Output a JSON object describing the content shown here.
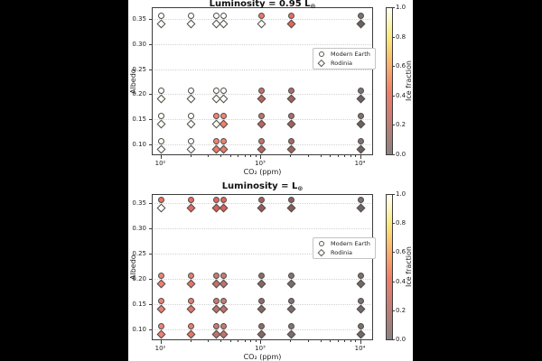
{
  "figure": {
    "background": "#000000",
    "panel_background": "#ffffff",
    "marker_edge_color": "#4d4d4d",
    "grid_color": "#d2d2d2"
  },
  "colorbar": {
    "label": "Ice fraction",
    "ticks": [
      "1.0",
      "0.8",
      "0.6",
      "0.4",
      "0.2",
      "0.0"
    ],
    "tick_values": [
      1.0,
      0.8,
      0.6,
      0.4,
      0.2,
      0.0
    ],
    "gradient_low_to_high": [
      "#8a8281",
      "#c97d74",
      "#ee7e6a",
      "#fcb36c",
      "#f9ea7c",
      "#fffff4"
    ]
  },
  "legend": {
    "items": [
      {
        "marker": "circle",
        "label": "Modern Earth"
      },
      {
        "marker": "diamond",
        "label": "Rodinia"
      }
    ]
  },
  "chart_data": [
    {
      "type": "scatter",
      "title_main": "Luminosity = 0.95 L",
      "title_sub": "⊙",
      "xlabel": "CO₂ (ppm)",
      "ylabel": "Albedo",
      "xscale": "log",
      "xlim": [
        83,
        13000
      ],
      "ylim": [
        0.08,
        0.37
      ],
      "xticks": [
        {
          "v": 100,
          "label": "10²"
        },
        {
          "v": 1000,
          "label": "10³"
        },
        {
          "v": 10000,
          "label": "10⁴"
        }
      ],
      "yticks": [
        "0.10",
        "0.15",
        "0.20",
        "0.25",
        "0.30",
        "0.35"
      ],
      "ytick_values": [
        0.1,
        0.15,
        0.2,
        0.25,
        0.3,
        0.35
      ],
      "grid": "horizontal dotted",
      "legend_position": "right of center",
      "color_encodes": "ice fraction",
      "series": [
        {
          "name": "Modern Earth",
          "marker": "circle",
          "points": [
            [
              100,
              0.35,
              1.0,
              "#fffdf5"
            ],
            [
              200,
              0.35,
              1.0,
              "#fffdf5"
            ],
            [
              360,
              0.35,
              1.0,
              "#fffdf5"
            ],
            [
              420,
              0.35,
              1.0,
              "#fffdf5"
            ],
            [
              1000,
              0.35,
              0.4,
              "#f07466"
            ],
            [
              2000,
              0.35,
              0.35,
              "#e66d60"
            ],
            [
              10000,
              0.35,
              0.0,
              "#7d7170"
            ],
            [
              100,
              0.2,
              1.0,
              "#fffdf5"
            ],
            [
              200,
              0.2,
              1.0,
              "#fffdf5"
            ],
            [
              360,
              0.2,
              1.0,
              "#fffdf5"
            ],
            [
              420,
              0.2,
              1.0,
              "#fffdf5"
            ],
            [
              1000,
              0.2,
              0.2,
              "#c4706a"
            ],
            [
              2000,
              0.2,
              0.14,
              "#b06a66"
            ],
            [
              10000,
              0.2,
              0.0,
              "#7d7170"
            ],
            [
              100,
              0.15,
              1.0,
              "#fffdf5"
            ],
            [
              200,
              0.15,
              1.0,
              "#fffdf5"
            ],
            [
              360,
              0.15,
              0.45,
              "#f5836f"
            ],
            [
              420,
              0.15,
              0.45,
              "#f5836f"
            ],
            [
              1000,
              0.15,
              0.2,
              "#c4706a"
            ],
            [
              2000,
              0.15,
              0.14,
              "#b06a66"
            ],
            [
              10000,
              0.15,
              0.0,
              "#7d7170"
            ],
            [
              100,
              0.1,
              1.0,
              "#fffdf5"
            ],
            [
              200,
              0.1,
              1.0,
              "#fffdf5"
            ],
            [
              360,
              0.1,
              0.42,
              "#f2806b"
            ],
            [
              420,
              0.1,
              0.42,
              "#f2806b"
            ],
            [
              1000,
              0.1,
              0.2,
              "#c4706a"
            ],
            [
              2000,
              0.1,
              0.12,
              "#ab6762"
            ],
            [
              10000,
              0.1,
              0.0,
              "#7d7170"
            ]
          ]
        },
        {
          "name": "Rodinia",
          "marker": "diamond",
          "points": [
            [
              100,
              0.35,
              1.0,
              "#fffdf5"
            ],
            [
              200,
              0.35,
              1.0,
              "#fffdf5"
            ],
            [
              360,
              0.35,
              1.0,
              "#fffdf5"
            ],
            [
              420,
              0.35,
              1.0,
              "#fffdf5"
            ],
            [
              1000,
              0.35,
              1.0,
              "#fffdf5"
            ],
            [
              2000,
              0.35,
              0.33,
              "#e2655a"
            ],
            [
              10000,
              0.35,
              0.0,
              "#6e615f"
            ],
            [
              100,
              0.2,
              1.0,
              "#fffdf5"
            ],
            [
              200,
              0.2,
              1.0,
              "#fffdf5"
            ],
            [
              360,
              0.2,
              1.0,
              "#fffdf5"
            ],
            [
              420,
              0.2,
              1.0,
              "#fffdf5"
            ],
            [
              1000,
              0.2,
              0.18,
              "#bb655e"
            ],
            [
              2000,
              0.2,
              0.12,
              "#a3625e"
            ],
            [
              10000,
              0.2,
              0.0,
              "#6e615f"
            ],
            [
              100,
              0.15,
              1.0,
              "#fffdf5"
            ],
            [
              200,
              0.15,
              1.0,
              "#fffdf5"
            ],
            [
              360,
              0.15,
              1.0,
              "#fffdf5"
            ],
            [
              420,
              0.15,
              0.42,
              "#f0816c"
            ],
            [
              1000,
              0.15,
              0.18,
              "#bb655e"
            ],
            [
              2000,
              0.15,
              0.12,
              "#a3625e"
            ],
            [
              10000,
              0.15,
              0.0,
              "#6e615f"
            ],
            [
              100,
              0.1,
              1.0,
              "#fffdf5"
            ],
            [
              200,
              0.1,
              1.0,
              "#fffdf5"
            ],
            [
              360,
              0.1,
              0.4,
              "#ed7a68"
            ],
            [
              420,
              0.1,
              0.4,
              "#ed7a68"
            ],
            [
              1000,
              0.1,
              0.18,
              "#bb655e"
            ],
            [
              2000,
              0.1,
              0.12,
              "#a3625e"
            ],
            [
              10000,
              0.1,
              0.0,
              "#6e615f"
            ]
          ]
        }
      ]
    },
    {
      "type": "scatter",
      "title_main": "Luminosity = L",
      "title_sub": "⊙",
      "xlabel": "CO₂ (ppm)",
      "ylabel": "Albedo",
      "xscale": "log",
      "xlim": [
        83,
        13000
      ],
      "ylim": [
        0.08,
        0.37
      ],
      "xticks": [
        {
          "v": 100,
          "label": "10²"
        },
        {
          "v": 1000,
          "label": "10³"
        },
        {
          "v": 10000,
          "label": "10⁴"
        }
      ],
      "yticks": [
        "0.10",
        "0.15",
        "0.20",
        "0.25",
        "0.30",
        "0.35"
      ],
      "ytick_values": [
        0.1,
        0.15,
        0.2,
        0.25,
        0.3,
        0.35
      ],
      "grid": "horizontal dotted",
      "legend_position": "right of center",
      "color_encodes": "ice fraction",
      "series": [
        {
          "name": "Modern Earth",
          "marker": "circle",
          "points": [
            [
              100,
              0.35,
              0.4,
              "#ef6f60"
            ],
            [
              200,
              0.35,
              0.35,
              "#ea6a5e"
            ],
            [
              360,
              0.35,
              0.32,
              "#e3675c"
            ],
            [
              420,
              0.35,
              0.32,
              "#e3675c"
            ],
            [
              1000,
              0.35,
              0.12,
              "#a8605b"
            ],
            [
              2000,
              0.35,
              0.06,
              "#90605d"
            ],
            [
              10000,
              0.35,
              0.0,
              "#7b6f6d"
            ],
            [
              100,
              0.2,
              0.45,
              "#ee8273"
            ],
            [
              200,
              0.2,
              0.42,
              "#e87c6d"
            ],
            [
              360,
              0.2,
              0.3,
              "#c97a71"
            ],
            [
              420,
              0.2,
              0.3,
              "#c97a71"
            ],
            [
              1000,
              0.2,
              0.05,
              "#8d6b68"
            ],
            [
              2000,
              0.2,
              0.02,
              "#837270"
            ],
            [
              10000,
              0.2,
              0.0,
              "#7b6f6d"
            ],
            [
              100,
              0.15,
              0.45,
              "#ee8273"
            ],
            [
              200,
              0.15,
              0.42,
              "#e87c6d"
            ],
            [
              360,
              0.15,
              0.3,
              "#c97a71"
            ],
            [
              420,
              0.15,
              0.3,
              "#c97a71"
            ],
            [
              1000,
              0.15,
              0.05,
              "#8d6b68"
            ],
            [
              2000,
              0.15,
              0.02,
              "#837270"
            ],
            [
              10000,
              0.15,
              0.0,
              "#7b6f6d"
            ],
            [
              100,
              0.1,
              0.45,
              "#ee8273"
            ],
            [
              200,
              0.1,
              0.42,
              "#e87c6d"
            ],
            [
              360,
              0.1,
              0.3,
              "#c97a71"
            ],
            [
              420,
              0.1,
              0.3,
              "#c97a71"
            ],
            [
              1000,
              0.1,
              0.05,
              "#8d6b68"
            ],
            [
              2000,
              0.1,
              0.02,
              "#837270"
            ],
            [
              10000,
              0.1,
              0.0,
              "#7b6f6d"
            ]
          ]
        },
        {
          "name": "Rodinia",
          "marker": "diamond",
          "points": [
            [
              100,
              0.35,
              1.0,
              "#fffdf5"
            ],
            [
              200,
              0.35,
              0.34,
              "#e7695d"
            ],
            [
              360,
              0.35,
              0.3,
              "#da6156"
            ],
            [
              420,
              0.35,
              0.3,
              "#da6156"
            ],
            [
              1000,
              0.35,
              0.08,
              "#9c5a56"
            ],
            [
              2000,
              0.35,
              0.04,
              "#8a5b58"
            ],
            [
              10000,
              0.35,
              0.0,
              "#6f6361"
            ],
            [
              100,
              0.2,
              0.44,
              "#ec8070"
            ],
            [
              200,
              0.2,
              0.4,
              "#e37667"
            ],
            [
              360,
              0.2,
              0.28,
              "#c0736b"
            ],
            [
              420,
              0.2,
              0.28,
              "#c0736b"
            ],
            [
              1000,
              0.2,
              0.05,
              "#8a6663"
            ],
            [
              2000,
              0.2,
              0.02,
              "#7e6c6a"
            ],
            [
              10000,
              0.2,
              0.0,
              "#736865"
            ],
            [
              100,
              0.15,
              0.44,
              "#ec8070"
            ],
            [
              200,
              0.15,
              0.4,
              "#e37667"
            ],
            [
              360,
              0.15,
              0.28,
              "#c0736b"
            ],
            [
              420,
              0.15,
              0.28,
              "#c0736b"
            ],
            [
              1000,
              0.15,
              0.05,
              "#8a6663"
            ],
            [
              2000,
              0.15,
              0.02,
              "#7e6c6a"
            ],
            [
              10000,
              0.15,
              0.0,
              "#736865"
            ],
            [
              100,
              0.1,
              0.44,
              "#ec8070"
            ],
            [
              200,
              0.1,
              0.4,
              "#e37667"
            ],
            [
              360,
              0.1,
              0.28,
              "#c0736b"
            ],
            [
              420,
              0.1,
              0.28,
              "#c0736b"
            ],
            [
              1000,
              0.1,
              0.05,
              "#8a6663"
            ],
            [
              2000,
              0.1,
              0.02,
              "#7e6c6a"
            ],
            [
              10000,
              0.1,
              0.0,
              "#736865"
            ]
          ]
        }
      ]
    }
  ]
}
